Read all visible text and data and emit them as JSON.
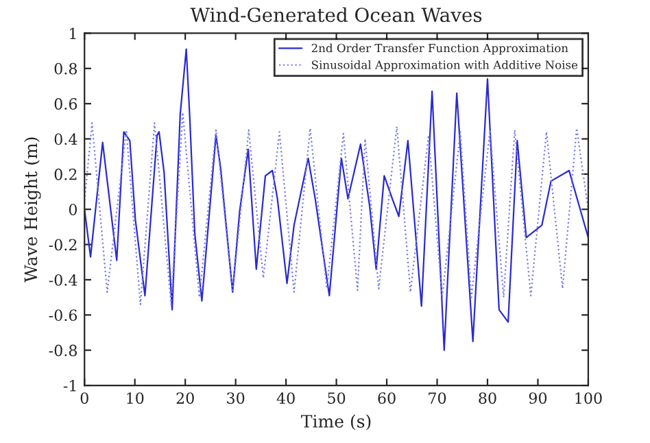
{
  "chart_data": {
    "type": "line",
    "title": "Wind-Generated Ocean Waves",
    "xlabel": "Time (s)",
    "ylabel": "Wave Height (m)",
    "xlim": [
      0,
      100
    ],
    "xticks": [
      0,
      10,
      20,
      30,
      40,
      50,
      60,
      70,
      80,
      90,
      100
    ],
    "ylim": [
      -1,
      1
    ],
    "yticks": [
      -1,
      -0.8,
      -0.6,
      -0.4,
      -0.2,
      0,
      0.2,
      0.4,
      0.6,
      0.8,
      1
    ],
    "grid": false,
    "legend": "top right",
    "series": [
      {
        "name": "2nd Order Transfer Function Approximation",
        "color": "#2a2ad0",
        "line_style": "solid",
        "x": [
          0,
          1.2,
          3.6,
          6.4,
          7.8,
          9.0,
          10.1,
          12.0,
          14.4,
          14.8,
          15.8,
          17.4,
          19.0,
          20.2,
          20.9,
          21.9,
          23.3,
          26.1,
          27.0,
          29.4,
          30.8,
          32.5,
          34.1,
          35.9,
          37.3,
          38.3,
          40.2,
          41.6,
          44.4,
          45.8,
          48.6,
          51.0,
          52.3,
          54.8,
          56.6,
          57.9,
          59.5,
          61.1,
          62.4,
          64.2,
          66.9,
          69.0,
          71.4,
          73.9,
          77.1,
          80.0,
          82.3,
          84.1,
          85.9,
          87.7,
          90.8,
          92.6,
          96.2,
          98.5,
          100
        ],
        "values": [
          0,
          -0.27,
          0.38,
          -0.29,
          0.44,
          0.39,
          -0.06,
          -0.49,
          0.42,
          0.44,
          0.21,
          -0.57,
          0.54,
          0.91,
          0.52,
          -0.14,
          -0.52,
          0.42,
          0.24,
          -0.47,
          -0.01,
          0.34,
          -0.34,
          0.19,
          0.22,
          0.06,
          -0.42,
          -0.09,
          0.29,
          0.06,
          -0.49,
          0.29,
          0.06,
          0.37,
          0.02,
          -0.34,
          0.19,
          0.06,
          -0.04,
          0.39,
          -0.55,
          0.67,
          -0.8,
          0.66,
          -0.75,
          0.74,
          -0.57,
          -0.64,
          0.39,
          -0.16,
          -0.09,
          0.16,
          0.22,
          -0.01,
          -0.16
        ]
      },
      {
        "name": "Sinusoidal Approximation with Additive Noise",
        "color": "#7a7aee",
        "line_style": "dotted",
        "x": [
          0,
          1.5,
          4.5,
          8.3,
          11.1,
          13.9,
          17.2,
          19.5,
          22.8,
          26.1,
          29.4,
          32.6,
          35.5,
          38.7,
          41.6,
          44.8,
          48.1,
          51.4,
          54.2,
          55.7,
          58.4,
          62.0,
          64.7,
          68.3,
          71.0,
          74.6,
          76.8,
          80.5,
          83.2,
          85.4,
          88.6,
          91.7,
          94.9,
          97.7,
          100
        ],
        "values": [
          0.05,
          0.49,
          -0.47,
          0.45,
          -0.54,
          0.49,
          -0.54,
          0.55,
          -0.5,
          0.45,
          -0.47,
          0.45,
          -0.39,
          0.44,
          -0.47,
          0.46,
          -0.45,
          0.43,
          -0.46,
          0.4,
          -0.45,
          0.47,
          -0.47,
          0.42,
          -0.5,
          0.44,
          -0.5,
          0.45,
          -0.5,
          0.45,
          -0.49,
          0.44,
          -0.45,
          0.46,
          0.0
        ]
      }
    ]
  }
}
